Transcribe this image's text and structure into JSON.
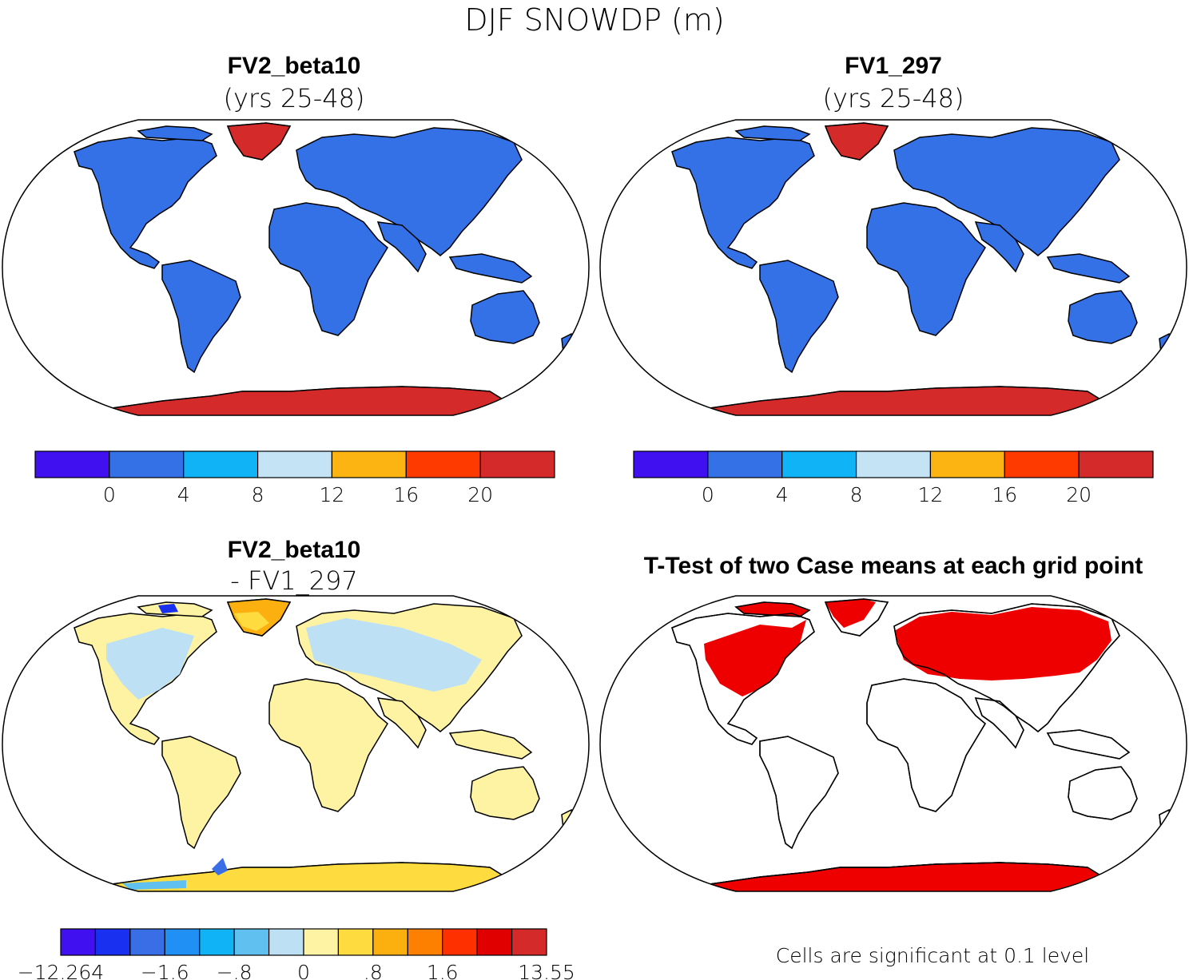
{
  "title": "DJF SNOWDP (m)",
  "colors": {
    "land_snow": "#3470e6",
    "antarctic": "#d42a2a",
    "diff_land": "#fef3a3",
    "diff_cool": "#bde0f4",
    "signif": "#ee0000",
    "outline": "#000000"
  },
  "panels": [
    {
      "title": "FV2_beta10",
      "subtitle": "(yrs 25-48)",
      "map_type": "snow-depth-field",
      "colorbar": {
        "colors": [
          "#4010f0",
          "#3470e6",
          "#10b4f6",
          "#c4e4f6",
          "#fcb412",
          "#fe3a00",
          "#d42a2a"
        ],
        "labels": [
          "0",
          "4",
          "8",
          "12",
          "16",
          "20"
        ]
      }
    },
    {
      "title": "FV1_297",
      "subtitle": "(yrs 25-48)",
      "map_type": "snow-depth-field",
      "colorbar": {
        "colors": [
          "#4010f0",
          "#3470e6",
          "#10b4f6",
          "#c4e4f6",
          "#fcb412",
          "#fe3a00",
          "#d42a2a"
        ],
        "labels": [
          "0",
          "4",
          "8",
          "12",
          "16",
          "20"
        ]
      }
    },
    {
      "title": "FV2_beta10",
      "subtitle": "- FV1_297",
      "map_type": "difference-field",
      "colorbar": {
        "colors": [
          "#4010f0",
          "#1a30f0",
          "#3a6ee6",
          "#2090f4",
          "#10b4f6",
          "#60c0f0",
          "#bde0f4",
          "#fef3a3",
          "#fedc40",
          "#fcb010",
          "#fe8000",
          "#fe3000",
          "#e00000",
          "#d42a2a"
        ],
        "labels": [
          "-12.264",
          "-1.6",
          "-.8",
          "0",
          ".8",
          "1.6",
          "13.55"
        ]
      }
    },
    {
      "title": "T-Test of two Case means at each grid point",
      "map_type": "significance-mask",
      "note": "Cells are significant at 0.1 level"
    }
  ]
}
